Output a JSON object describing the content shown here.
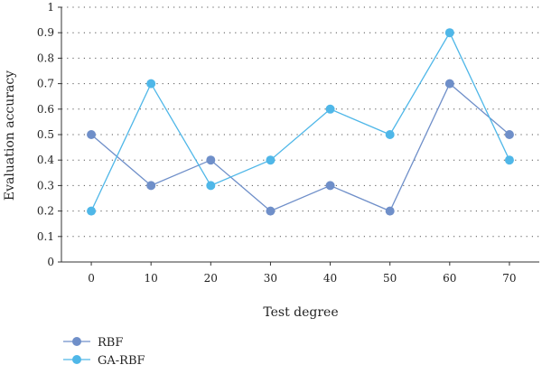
{
  "chart_data": {
    "type": "line",
    "title": "",
    "xlabel": "Test degree",
    "ylabel": "Evaluation accuracy",
    "x": [
      0,
      10,
      20,
      30,
      40,
      50,
      60,
      70
    ],
    "xlim": [
      -5,
      75
    ],
    "ylim": [
      0,
      1
    ],
    "xticks": [
      0,
      10,
      20,
      30,
      40,
      50,
      60,
      70
    ],
    "yticks": [
      0,
      0.1,
      0.2,
      0.3,
      0.4,
      0.5,
      0.6,
      0.7,
      0.8,
      0.9,
      1
    ],
    "ytick_labels": [
      "0",
      "0.1",
      "0.2",
      "0.3",
      "0.4",
      "0.5",
      "0.6",
      "0.7",
      "0.8",
      "0.9",
      "1"
    ],
    "grid": "horizontal dotted",
    "legend_position": "bottom-left",
    "series": [
      {
        "name": "RBF",
        "color": "#6f8fc9",
        "values": [
          0.5,
          0.3,
          0.4,
          0.2,
          0.3,
          0.2,
          0.7,
          0.5
        ]
      },
      {
        "name": "GA-RBF",
        "color": "#4fb7e8",
        "values": [
          0.2,
          0.7,
          0.3,
          0.4,
          0.6,
          0.5,
          0.9,
          0.4
        ]
      }
    ]
  }
}
